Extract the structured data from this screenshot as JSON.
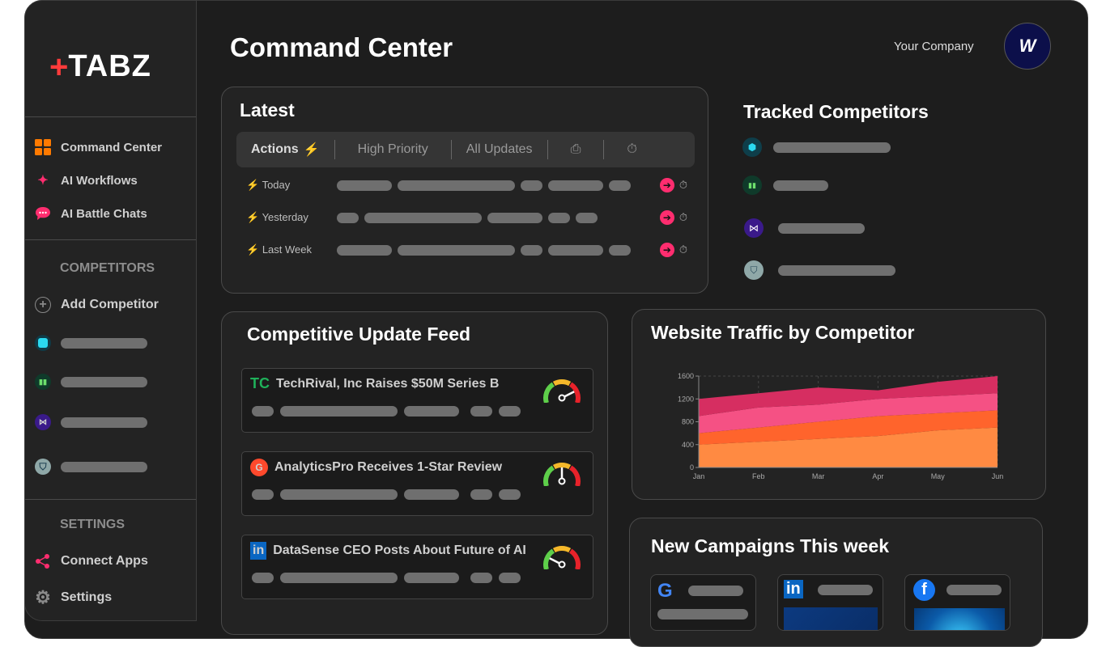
{
  "app": {
    "logo": "TABZ",
    "page_title": "Command Center",
    "company": "Your Company"
  },
  "sidebar": {
    "items": [
      {
        "label": "Command Center",
        "icon": "grid-icon"
      },
      {
        "label": "AI Workflows",
        "icon": "sparkle-icon"
      },
      {
        "label": "AI Battle Chats",
        "icon": "chat-icon"
      }
    ],
    "competitors_heading": "COMPETITORS",
    "add_competitor": "Add Competitor",
    "settings_heading": "SETTINGS",
    "settings_items": [
      {
        "label": "Connect Apps",
        "icon": "share-icon"
      },
      {
        "label": "Settings",
        "icon": "gear-icon"
      }
    ]
  },
  "latest": {
    "title": "Latest",
    "tabs": [
      "Actions",
      "High Priority",
      "All Updates"
    ],
    "rows": [
      "Today",
      "Yesterday",
      "Last Week"
    ]
  },
  "tracked": {
    "title": "Tracked Competitors"
  },
  "feed": {
    "title": "Competitive Update Feed",
    "items": [
      {
        "source": "TC",
        "headline": "TechRival, Inc Raises $50M Series B",
        "level": 0.85
      },
      {
        "source": "G2",
        "headline": "AnalyticsPro Receives 1-Star Review",
        "level": 0.5
      },
      {
        "source": "in",
        "headline": "DataSense CEO Posts About Future of AI",
        "level": 0.15
      }
    ]
  },
  "traffic": {
    "title": "Website Traffic by Competitor"
  },
  "campaigns": {
    "title": "New Campaigns This week",
    "sources": [
      "google",
      "linkedin",
      "facebook"
    ]
  },
  "colors": {
    "accent": "#ff2d6f",
    "orange": "#ff7a00"
  },
  "chart_data": {
    "type": "area",
    "stacked": true,
    "categories": [
      "Jan",
      "Feb",
      "Mar",
      "Apr",
      "May",
      "Jun"
    ],
    "ylim": [
      0,
      1600
    ],
    "yticks": [
      0,
      400,
      800,
      1200,
      1600
    ],
    "grid": true,
    "series": [
      {
        "values": [
          400,
          450,
          500,
          550,
          650,
          700
        ],
        "color": "#ff8a42"
      },
      {
        "values": [
          200,
          250,
          300,
          350,
          300,
          300
        ],
        "color": "#ff642c"
      },
      {
        "values": [
          300,
          350,
          300,
          300,
          300,
          300
        ],
        "color": "#f55184"
      },
      {
        "values": [
          300,
          250,
          300,
          150,
          250,
          300
        ],
        "color": "#d62e61"
      }
    ]
  }
}
